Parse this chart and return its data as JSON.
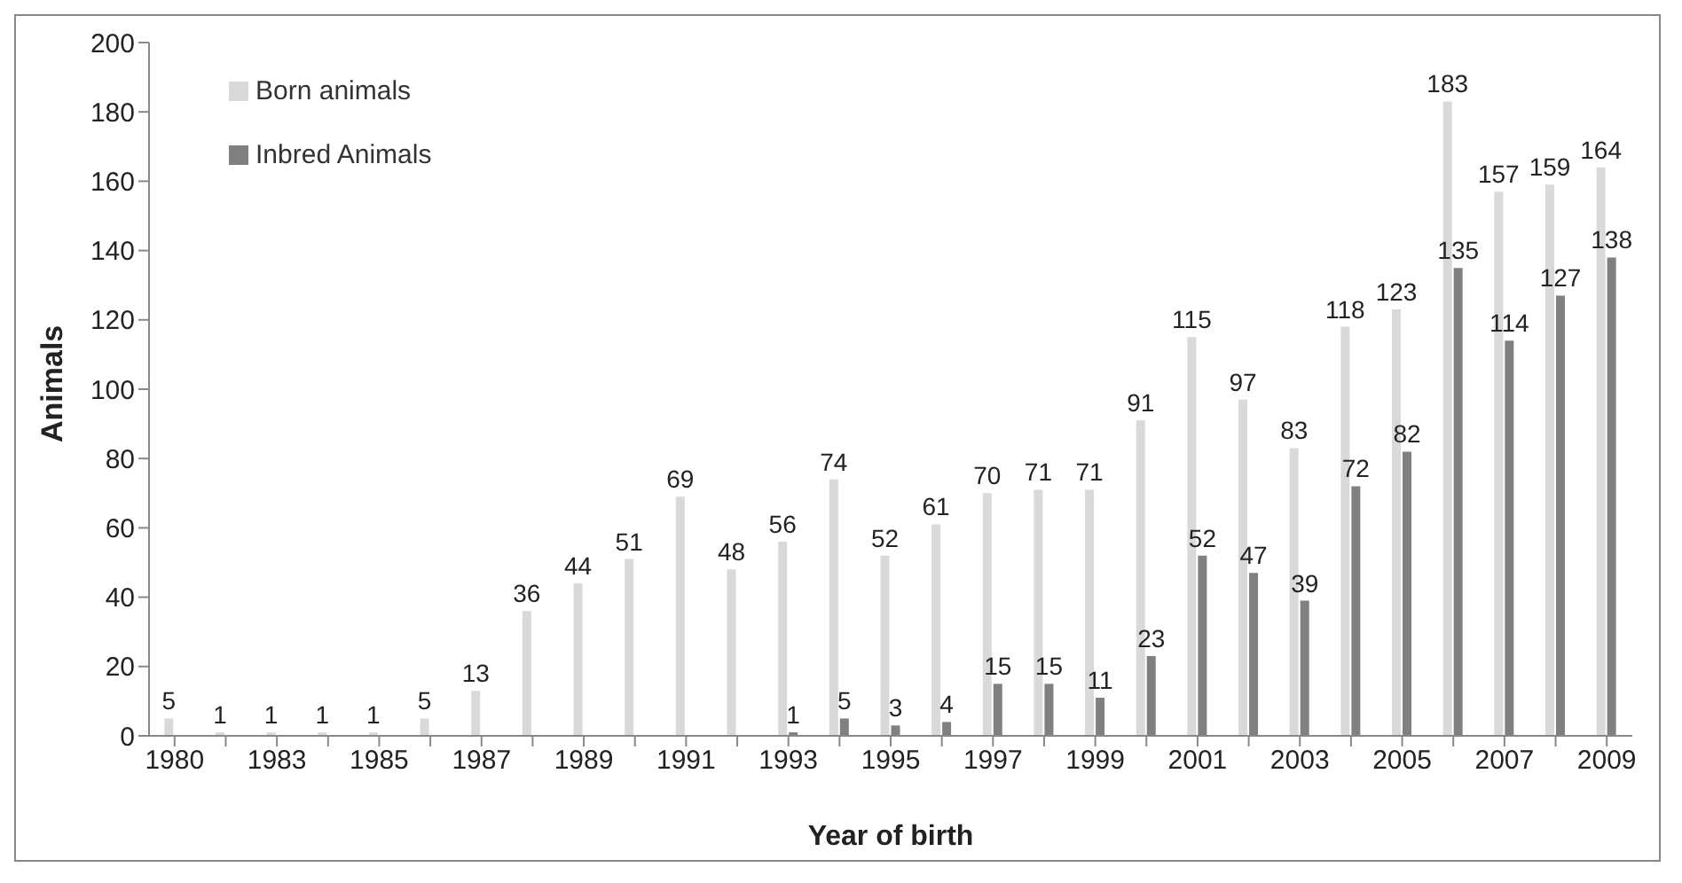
{
  "chart_data": {
    "type": "bar",
    "xlabel": "Year of birth",
    "ylabel": "Animals",
    "categories": [
      "1980",
      null,
      "1983",
      null,
      "1985",
      null,
      "1987",
      null,
      "1989",
      null,
      "1991",
      null,
      "1993",
      null,
      "1995",
      null,
      "1997",
      null,
      "1999",
      null,
      "2001",
      null,
      "2003",
      null,
      "2005",
      null,
      "2007",
      null,
      "2009"
    ],
    "series": [
      {
        "name": "Born animals",
        "color": "#d9d9d9",
        "values": [
          5,
          1,
          1,
          1,
          1,
          5,
          13,
          36,
          44,
          51,
          69,
          48,
          56,
          74,
          52,
          61,
          70,
          71,
          71,
          91,
          115,
          97,
          83,
          118,
          123,
          183,
          157,
          159,
          164
        ]
      },
      {
        "name": "Inbred Animals",
        "color": "#808080",
        "values": [
          null,
          null,
          null,
          null,
          null,
          null,
          null,
          null,
          null,
          null,
          null,
          null,
          1,
          5,
          3,
          4,
          15,
          15,
          11,
          23,
          52,
          47,
          39,
          72,
          82,
          135,
          114,
          127,
          138
        ]
      }
    ],
    "ylim": [
      0,
      200
    ],
    "yticks": [
      0,
      20,
      40,
      60,
      80,
      100,
      120,
      140,
      160,
      180,
      200
    ],
    "data_labels": true,
    "grid": false,
    "legend": "top left"
  }
}
